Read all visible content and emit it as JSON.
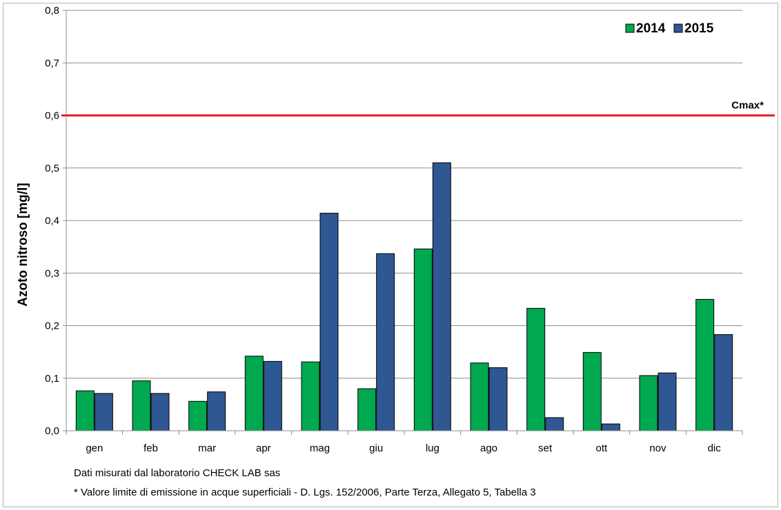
{
  "chart_data": {
    "type": "bar",
    "title": "",
    "xlabel": "",
    "ylabel": "Azoto nitroso [mg/l]",
    "ylim": [
      0,
      0.8
    ],
    "yticks": [
      "0,0",
      "0,1",
      "0,2",
      "0,3",
      "0,4",
      "0,5",
      "0,6",
      "0,7",
      "0,8"
    ],
    "grid": true,
    "legend_position": "top-right",
    "categories": [
      "gen",
      "feb",
      "mar",
      "apr",
      "mag",
      "giu",
      "lug",
      "ago",
      "set",
      "ott",
      "nov",
      "dic"
    ],
    "series": [
      {
        "name": "2014",
        "color": "#00a84f",
        "values": [
          0.076,
          0.095,
          0.056,
          0.142,
          0.131,
          0.08,
          0.346,
          0.129,
          0.233,
          0.149,
          0.105,
          0.25
        ]
      },
      {
        "name": "2015",
        "color": "#2f5792",
        "values": [
          0.071,
          0.071,
          0.074,
          0.132,
          0.414,
          0.337,
          0.51,
          0.12,
          0.025,
          0.013,
          0.11,
          0.183
        ]
      }
    ],
    "limit_line": {
      "value": 0.6,
      "label": "Cmax*",
      "color": "#ee1c1c"
    },
    "notes": [
      "Dati misurati dal laboratorio CHECK LAB sas",
      "* Valore limite di emissione in acque superficiali - D. Lgs. 152/2006, Parte Terza, Allegato 5, Tabella 3"
    ]
  }
}
